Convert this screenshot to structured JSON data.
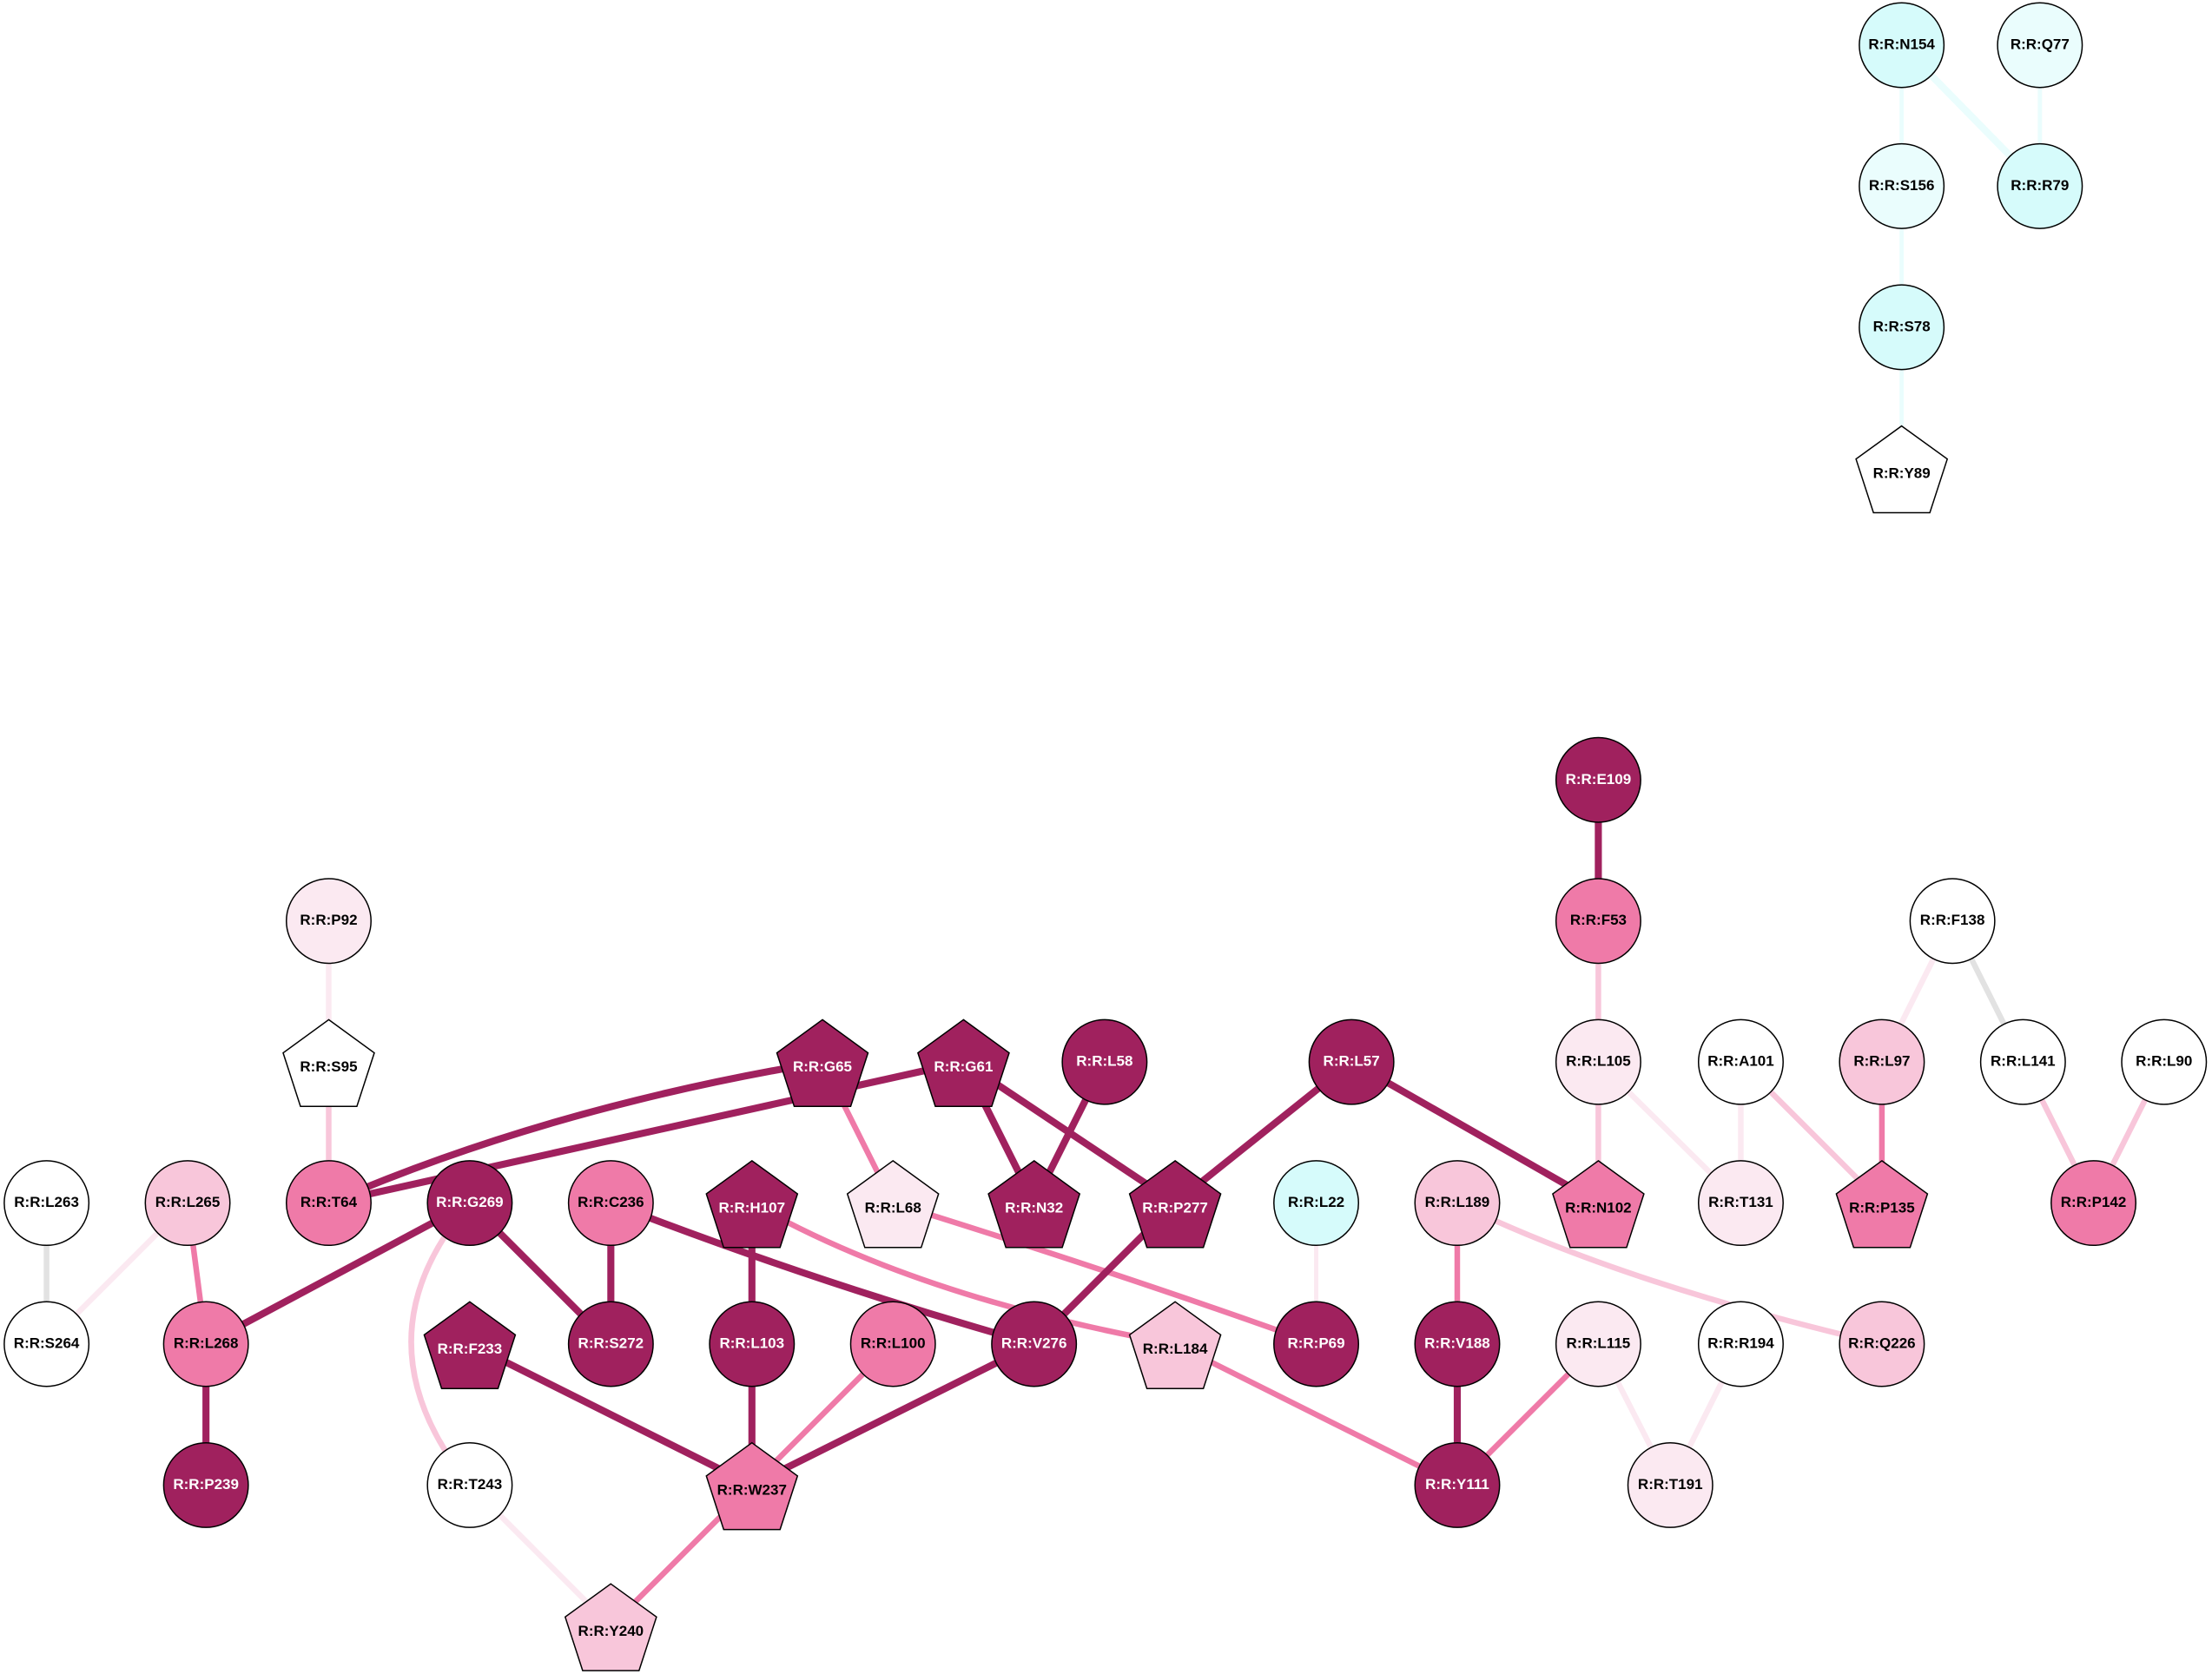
{
  "nodes": [
    {
      "label": "R:R:N154"
    },
    {
      "label": "R:R:Q77"
    },
    {
      "label": "R:R:S156"
    },
    {
      "label": "R:R:R79"
    },
    {
      "label": "R:R:S78"
    },
    {
      "label": "R:R:Y89"
    },
    {
      "label": "R:R:E109"
    },
    {
      "label": "R:R:F53"
    },
    {
      "label": "R:R:P92"
    },
    {
      "label": "R:R:F138"
    },
    {
      "label": "R:R:S95"
    },
    {
      "label": "R:R:G65"
    },
    {
      "label": "R:R:G61"
    },
    {
      "label": "R:R:L58"
    },
    {
      "label": "R:R:L57"
    },
    {
      "label": "R:R:L105"
    },
    {
      "label": "R:R:A101"
    },
    {
      "label": "R:R:L97"
    },
    {
      "label": "R:R:L141"
    },
    {
      "label": "R:R:L90"
    },
    {
      "label": "R:R:L263"
    },
    {
      "label": "R:R:L265"
    },
    {
      "label": "R:R:T64"
    },
    {
      "label": "R:R:G269"
    },
    {
      "label": "R:R:C236"
    },
    {
      "label": "R:R:H107"
    },
    {
      "label": "R:R:L68"
    },
    {
      "label": "R:R:N32"
    },
    {
      "label": "R:R:P277"
    },
    {
      "label": "R:R:L22"
    },
    {
      "label": "R:R:L189"
    },
    {
      "label": "R:R:N102"
    },
    {
      "label": "R:R:T131"
    },
    {
      "label": "R:R:P135"
    },
    {
      "label": "R:R:P142"
    },
    {
      "label": "R:R:S264"
    },
    {
      "label": "R:R:L268"
    },
    {
      "label": "R:R:F233"
    },
    {
      "label": "R:R:S272"
    },
    {
      "label": "R:R:L103"
    },
    {
      "label": "R:R:L100"
    },
    {
      "label": "R:R:V276"
    },
    {
      "label": "R:R:L184"
    },
    {
      "label": "R:R:P69"
    },
    {
      "label": "R:R:V188"
    },
    {
      "label": "R:R:L115"
    },
    {
      "label": "R:R:R194"
    },
    {
      "label": "R:R:Q226"
    },
    {
      "label": "R:R:P239"
    },
    {
      "label": "R:R:T243"
    },
    {
      "label": "R:R:W237"
    },
    {
      "label": "R:R:Y111"
    },
    {
      "label": "R:R:T191"
    },
    {
      "label": "R:R:Y240"
    }
  ]
}
